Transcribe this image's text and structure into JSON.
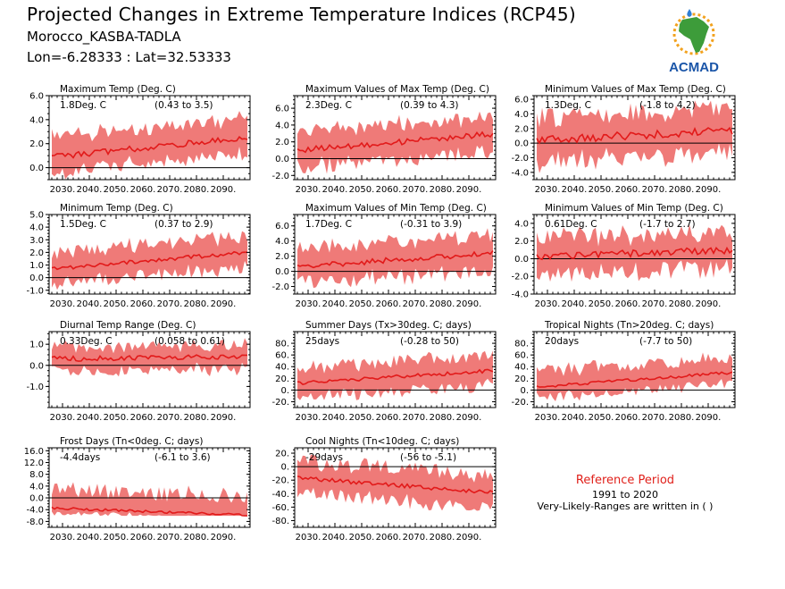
{
  "header": {
    "title": "Projected Changes in Extreme Temperature Indices (RCP45)",
    "location": "Morocco_KASBA-TADLA",
    "coords": "Lon=-6.28333 : Lat=32.53333"
  },
  "logo": {
    "text": "ACMAD",
    "colors": {
      "africa": "#3d9c3a",
      "text": "#1a55a8",
      "sun": "#f2a21e",
      "drop": "#2f7fd6"
    }
  },
  "reference": {
    "title": "Reference Period",
    "years": "1991 to 2020",
    "note": "Very-Likely-Ranges are written in ( )"
  },
  "colors": {
    "band": "#ef7a78",
    "line": "#e21a1a",
    "zero": "#000000"
  },
  "chart_data": [
    {
      "type": "area",
      "title": "Maximum Temp (Deg. C)",
      "value": "1.8Deg. C",
      "range": "(0.43 to 3.5)",
      "ylim": [
        -1.0,
        6.0
      ],
      "yticks": [
        0.0,
        2.0,
        4.0,
        6.0
      ],
      "ytick_labels": [
        "0.0",
        "2.0",
        "4.0",
        "6.0"
      ],
      "start": 0.9,
      "end": 2.5,
      "spread_lo": 1.3,
      "spread_hi": 1.5,
      "noise": 0.25,
      "x_ticks": [
        "2030.",
        "2040.",
        "2050.",
        "2060.",
        "2070.",
        "2080.",
        "2090."
      ]
    },
    {
      "type": "area",
      "title": "Maximum Values of Max Temp (Deg. C)",
      "value": "2.3Deg. C",
      "range": "(0.39 to 4.3)",
      "ylim": [
        -2.5,
        7.5
      ],
      "yticks": [
        -2.0,
        0.0,
        2.0,
        4.0,
        6.0
      ],
      "ytick_labels": [
        "-2.0",
        "0.0",
        "2.0",
        "4.0",
        "6.0"
      ],
      "start": 1.0,
      "end": 2.9,
      "spread_lo": 2.0,
      "spread_hi": 2.0,
      "noise": 0.35,
      "x_ticks": [
        "2030.",
        "2040.",
        "2050.",
        "2060.",
        "2070.",
        "2080.",
        "2090."
      ]
    },
    {
      "type": "area",
      "title": "Minimum Values of Max Temp (Deg. C)",
      "value": "1.3Deg. C",
      "range": "(-1.8 to 4.2)",
      "ylim": [
        -5.0,
        6.5
      ],
      "yticks": [
        -4.0,
        -2.0,
        0.0,
        2.0,
        4.0,
        6.0
      ],
      "ytick_labels": [
        "-4.0",
        "-2.0",
        "0.0",
        "2.0",
        "4.0",
        "6.0"
      ],
      "start": 0.4,
      "end": 1.7,
      "spread_lo": 2.8,
      "spread_hi": 2.8,
      "noise": 0.55,
      "x_ticks": [
        "2030.",
        "2040.",
        "2050.",
        "2060.",
        "2070.",
        "2080.",
        "2090."
      ]
    },
    {
      "type": "area",
      "title": "Minimum Temp (Deg. C)",
      "value": "1.5Deg. C",
      "range": "(0.37 to 2.9)",
      "ylim": [
        -1.3,
        5.0
      ],
      "yticks": [
        -1.0,
        0.0,
        1.0,
        2.0,
        3.0,
        4.0,
        5.0
      ],
      "ytick_labels": [
        "-1.0",
        "0.0",
        "1.0",
        "2.0",
        "3.0",
        "4.0",
        "5.0"
      ],
      "start": 0.7,
      "end": 2.0,
      "spread_lo": 1.1,
      "spread_hi": 1.2,
      "noise": 0.15,
      "x_ticks": [
        "2030.",
        "2040.",
        "2050.",
        "2060.",
        "2070.",
        "2080.",
        "2090."
      ]
    },
    {
      "type": "area",
      "title": "Maximum Values of Min Temp (Deg. C)",
      "value": "1.7Deg. C",
      "range": "(-0.31 to 3.9)",
      "ylim": [
        -3.0,
        7.5
      ],
      "yticks": [
        -2.0,
        0.0,
        2.0,
        4.0,
        6.0
      ],
      "ytick_labels": [
        "-2.0",
        "0.0",
        "2.0",
        "4.0",
        "6.0"
      ],
      "start": 0.6,
      "end": 2.4,
      "spread_lo": 2.1,
      "spread_hi": 2.2,
      "noise": 0.35,
      "x_ticks": [
        "2030.",
        "2040.",
        "2050.",
        "2060.",
        "2070.",
        "2080.",
        "2090."
      ]
    },
    {
      "type": "area",
      "title": "Minimum Values of Min Temp (Deg. C)",
      "value": "0.61Deg. C",
      "range": "(-1.7 to 2.7)",
      "ylim": [
        -4.0,
        5.0
      ],
      "yticks": [
        -4.0,
        -2.0,
        0.0,
        2.0,
        4.0
      ],
      "ytick_labels": [
        "-4.0",
        "-2.0",
        "0.0",
        "2.0",
        "4.0"
      ],
      "start": 0.2,
      "end": 1.0,
      "spread_lo": 2.0,
      "spread_hi": 2.0,
      "noise": 0.4,
      "x_ticks": [
        "2030.",
        "2040.",
        "2050.",
        "2060.",
        "2070.",
        "2080.",
        "2090."
      ]
    },
    {
      "type": "area",
      "title": "Diurnal Temp Range (Deg. C)",
      "value": "0.33Deg. C",
      "range": "(0.058 to 0.61)",
      "ylim": [
        -2.0,
        1.6
      ],
      "yticks": [
        -1.0,
        0.0,
        1.0
      ],
      "ytick_labels": [
        "-1.0",
        "0.0",
        "1.0"
      ],
      "start": 0.3,
      "end": 0.4,
      "spread_lo": 0.55,
      "spread_hi": 0.55,
      "noise": 0.12,
      "x_ticks": [
        "2030.",
        "2040.",
        "2050.",
        "2060.",
        "2070.",
        "2080.",
        "2090."
      ]
    },
    {
      "type": "area",
      "title": "Summer Days (Tx>30deg. C; days)",
      "value": "25days",
      "range": "(-0.28 to 50)",
      "ylim": [
        -30,
        100
      ],
      "yticks": [
        -20,
        0,
        20,
        40,
        60,
        80
      ],
      "ytick_labels": [
        "-20.",
        "0.",
        "20.",
        "40.",
        "60.",
        "80."
      ],
      "start": 12,
      "end": 33,
      "spread_lo": 23,
      "spread_hi": 25,
      "noise": 3,
      "x_ticks": [
        "2030.",
        "2040.",
        "2050.",
        "2060.",
        "2070.",
        "2080.",
        "2090."
      ]
    },
    {
      "type": "area",
      "title": "Tropical Nights (Tn>20deg. C; days)",
      "value": "20days",
      "range": "(-7.7 to 50)",
      "ylim": [
        -30,
        100
      ],
      "yticks": [
        -20,
        0,
        20,
        40,
        60,
        80
      ],
      "ytick_labels": [
        "-20.",
        "0.",
        "20.",
        "40.",
        "60.",
        "80."
      ],
      "start": 5,
      "end": 30,
      "spread_lo": 18,
      "spread_hi": 25,
      "noise": 2.5,
      "x_ticks": [
        "2030.",
        "2040.",
        "2050.",
        "2060.",
        "2070.",
        "2080.",
        "2090."
      ]
    },
    {
      "type": "area",
      "title": "Frost Days (Tn<0deg. C; days)",
      "value": "-4.4days",
      "range": "(-6.1 to 3.6)",
      "ylim": [
        -10,
        17
      ],
      "yticks": [
        -8.0,
        -4.0,
        0.0,
        4.0,
        8.0,
        12.0,
        16.0
      ],
      "ytick_labels": [
        "-8.0",
        "-4.0",
        "0.0",
        "4.0",
        "8.0",
        "12.0",
        "16.0"
      ],
      "start": -3.5,
      "end": -5.8,
      "spread_lo": 1.5,
      "spread_hi": 6.0,
      "noise": 0.4,
      "floor": -6.1,
      "x_ticks": [
        "2030.",
        "2040.",
        "2050.",
        "2060.",
        "2070.",
        "2080.",
        "2090."
      ]
    },
    {
      "type": "area",
      "title": "Cool Nights (Tn<10deg. C; days)",
      "value": "-29days",
      "range": "(-56 to -5.1)",
      "ylim": [
        -90,
        28
      ],
      "yticks": [
        -80,
        -60,
        -40,
        -20,
        0,
        20
      ],
      "ytick_labels": [
        "-80.",
        "-60.",
        "-40.",
        "-20.",
        "0.",
        "20."
      ],
      "start": -17,
      "end": -38,
      "spread_lo": 22,
      "spread_hi": 24,
      "noise": 3,
      "x_ticks": [
        "2030.",
        "2040.",
        "2050.",
        "2060.",
        "2070.",
        "2080.",
        "2090."
      ]
    }
  ]
}
